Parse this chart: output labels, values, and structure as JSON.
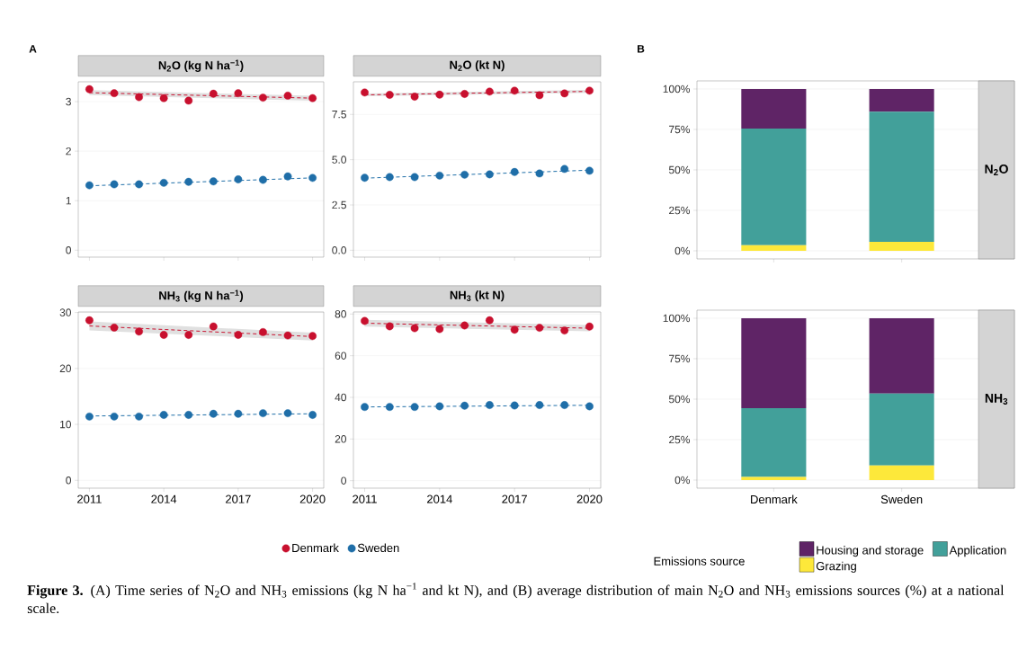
{
  "chart_data": [
    {
      "type": "scatter",
      "title": "N$_{2}$O (kg N ha$^{−1}$)",
      "annotations": [
        "A"
      ],
      "x": [
        2011,
        2012,
        2013,
        2014,
        2015,
        2016,
        2017,
        2018,
        2019,
        2020
      ],
      "xlim": [
        2010.55,
        2020.45
      ],
      "xticks": [
        2011,
        2014,
        2017,
        2020
      ],
      "ylim": [
        -0.14,
        3.4
      ],
      "yticks": [
        0,
        1,
        2,
        3
      ],
      "tick_labels": "y",
      "grid": "y",
      "series": [
        {
          "type": "line",
          "line_style": "dashed",
          "marker": "none",
          "color": "#c8102e",
          "values": [
            3.18,
            null,
            null,
            null,
            null,
            null,
            null,
            null,
            null,
            3.07
          ],
          "lower": [
            3.13,
            null,
            null,
            null,
            null,
            null,
            null,
            null,
            null,
            3.02
          ],
          "upper": [
            3.23,
            null,
            null,
            null,
            null,
            null,
            null,
            null,
            null,
            3.12
          ]
        },
        {
          "type": "line",
          "line_style": "dashed",
          "marker": "none",
          "color": "#1f6ea8",
          "values": [
            1.3,
            null,
            null,
            null,
            null,
            null,
            null,
            null,
            null,
            1.46
          ]
        },
        {
          "marker": "circle",
          "color": "#c8102e",
          "values": [
            3.25,
            3.17,
            3.09,
            3.07,
            3.02,
            3.16,
            3.17,
            3.08,
            3.12,
            3.07
          ]
        },
        {
          "marker": "circle",
          "color": "#1f6ea8",
          "values": [
            1.31,
            1.33,
            1.33,
            1.36,
            1.38,
            1.39,
            1.43,
            1.42,
            1.49,
            1.46
          ]
        }
      ]
    },
    {
      "type": "scatter",
      "title": "N$_{2}$O (kt N)",
      "x": [
        2011,
        2012,
        2013,
        2014,
        2015,
        2016,
        2017,
        2018,
        2019,
        2020
      ],
      "xlim": [
        2010.55,
        2020.45
      ],
      "xticks": [
        2011,
        2014,
        2017,
        2020
      ],
      "ylim": [
        -0.38,
        9.3
      ],
      "yticks": [
        {
          "value": 0,
          "label": "0.0"
        },
        2.5,
        {
          "value": 5,
          "label": "5.0"
        },
        7.5
      ],
      "tick_labels": "y",
      "grid": "y",
      "series": [
        {
          "type": "line",
          "line_style": "dashed",
          "marker": "none",
          "color": "#c8102e",
          "values": [
            8.58,
            null,
            null,
            null,
            null,
            null,
            null,
            null,
            null,
            8.77
          ],
          "lower": [
            8.5,
            null,
            null,
            null,
            null,
            null,
            null,
            null,
            null,
            8.69
          ],
          "upper": [
            8.66,
            null,
            null,
            null,
            null,
            null,
            null,
            null,
            null,
            8.85
          ]
        },
        {
          "type": "line",
          "line_style": "dashed",
          "marker": "none",
          "color": "#1f6ea8",
          "values": [
            3.98,
            null,
            null,
            null,
            null,
            null,
            null,
            null,
            null,
            4.42
          ]
        },
        {
          "marker": "circle",
          "color": "#c8102e",
          "values": [
            8.71,
            8.58,
            8.48,
            8.59,
            8.63,
            8.76,
            8.81,
            8.56,
            8.66,
            8.81
          ]
        },
        {
          "marker": "circle",
          "color": "#1f6ea8",
          "values": [
            4.0,
            4.04,
            4.04,
            4.12,
            4.17,
            4.19,
            4.32,
            4.24,
            4.49,
            4.39
          ]
        }
      ]
    },
    {
      "type": "scatter",
      "title": "NH$_{3}$ (kg N ha$^{−1}$)",
      "annotations": [
        "**Figure 3.** (A) Time series of N$_{2}$O and NH$_{3}$ emissions (kg N ha$^{−1}$ and kt N), and (B) average distribution of main N$_{2}$O and NH$_{3}$ emissions sources (%) at a national scale."
      ],
      "x": [
        2011,
        2012,
        2013,
        2014,
        2015,
        2016,
        2017,
        2018,
        2019,
        2020
      ],
      "xlim": [
        2010.55,
        2020.45
      ],
      "xticks": [
        2011,
        2014,
        2017,
        2020
      ],
      "ylim": [
        -1.4,
        30.1
      ],
      "yticks": [
        0,
        10,
        20,
        30
      ],
      "grid": "y",
      "legend": "bottom",
      "series": [
        {
          "type": "line",
          "line_style": "dashed",
          "marker": "none",
          "color": "#c8102e",
          "values": [
            27.6,
            null,
            null,
            null,
            null,
            null,
            null,
            null,
            null,
            25.7
          ],
          "lower": [
            26.8,
            null,
            null,
            null,
            null,
            null,
            null,
            null,
            null,
            25.0
          ],
          "upper": [
            28.4,
            null,
            null,
            null,
            null,
            null,
            null,
            null,
            null,
            26.4
          ]
        },
        {
          "type": "line",
          "line_style": "dashed",
          "marker": "none",
          "color": "#1f6ea8",
          "values": [
            11.5,
            null,
            null,
            null,
            null,
            null,
            null,
            null,
            null,
            11.9
          ]
        },
        {
          "name": "Denmark",
          "marker": "circle",
          "color": "#c8102e",
          "values": [
            28.6,
            27.3,
            26.6,
            26.0,
            26.0,
            27.5,
            26.0,
            26.5,
            25.9,
            25.8
          ]
        },
        {
          "name": "Sweden",
          "marker": "circle",
          "color": "#1f6ea8",
          "values": [
            11.4,
            11.4,
            11.4,
            11.7,
            11.7,
            11.9,
            11.9,
            12.0,
            12.0,
            11.7
          ]
        }
      ]
    },
    {
      "type": "scatter",
      "title": "NH$_{3}$ (kt N)",
      "x": [
        2011,
        2012,
        2013,
        2014,
        2015,
        2016,
        2017,
        2018,
        2019,
        2020
      ],
      "xlim": [
        2010.55,
        2020.45
      ],
      "xticks": [
        2011,
        2014,
        2017,
        2020
      ],
      "ylim": [
        -3.6,
        81
      ],
      "yticks": [
        0,
        20,
        40,
        60,
        80
      ],
      "grid": "y",
      "series": [
        {
          "type": "line",
          "line_style": "dashed",
          "marker": "none",
          "color": "#c8102e",
          "values": [
            75.6,
            null,
            null,
            null,
            null,
            null,
            null,
            null,
            null,
            73.2
          ],
          "lower": [
            74.0,
            null,
            null,
            null,
            null,
            null,
            null,
            null,
            null,
            71.7
          ],
          "upper": [
            77.2,
            null,
            null,
            null,
            null,
            null,
            null,
            null,
            null,
            74.7
          ]
        },
        {
          "type": "line",
          "line_style": "dashed",
          "marker": "none",
          "color": "#1f6ea8",
          "values": [
            35.4,
            null,
            null,
            null,
            null,
            null,
            null,
            null,
            null,
            36.2
          ]
        },
        {
          "marker": "circle",
          "color": "#c8102e",
          "values": [
            76.7,
            74.1,
            73.2,
            72.8,
            74.5,
            77.0,
            72.5,
            73.4,
            72.1,
            74.0
          ]
        },
        {
          "marker": "circle",
          "color": "#1f6ea8",
          "values": [
            35.4,
            35.4,
            35.4,
            35.7,
            36.0,
            36.3,
            36.1,
            36.3,
            36.3,
            35.7
          ]
        }
      ]
    },
    {
      "type": "bar",
      "title": "N$_{2}$O",
      "annotations": [
        "B"
      ],
      "stacked": true,
      "categories": [
        null,
        null
      ],
      "ylim": [
        -5,
        105
      ],
      "yticks": [
        {
          "value": 0,
          "label": "0%"
        },
        {
          "value": 25,
          "label": "25%"
        },
        {
          "value": 50,
          "label": "50%"
        },
        {
          "value": 75,
          "label": "75%"
        },
        {
          "value": 100,
          "label": "100%"
        }
      ],
      "grid": "y",
      "series": [
        {
          "color": "#fde83a",
          "values": [
            3.5,
            5.5
          ]
        },
        {
          "color": "#42a09a",
          "values": [
            72,
            80.5
          ]
        },
        {
          "color": "#5f2466",
          "values": [
            24.5,
            14
          ]
        }
      ]
    },
    {
      "type": "bar",
      "title": "NH$_{3}$",
      "legend_title": "Emissions source",
      "stacked": true,
      "categories": [
        "Denmark",
        "Sweden"
      ],
      "ylim": [
        -5,
        105
      ],
      "yticks": [
        {
          "value": 0,
          "label": "0%"
        },
        {
          "value": 25,
          "label": "25%"
        },
        {
          "value": 50,
          "label": "50%"
        },
        {
          "value": 75,
          "label": "75%"
        },
        {
          "value": 100,
          "label": "100%"
        }
      ],
      "grid": "y",
      "legend": "bottom",
      "series": [
        {
          "name": "Grazing",
          "color": "#fde83a",
          "values": [
            2,
            9
          ]
        },
        {
          "name": "Application",
          "color": "#42a09a",
          "values": [
            42.5,
            44.5
          ]
        },
        {
          "name": "Housing and storage",
          "color": "#5f2466",
          "values": [
            55.5,
            46.5
          ]
        }
      ]
    }
  ]
}
